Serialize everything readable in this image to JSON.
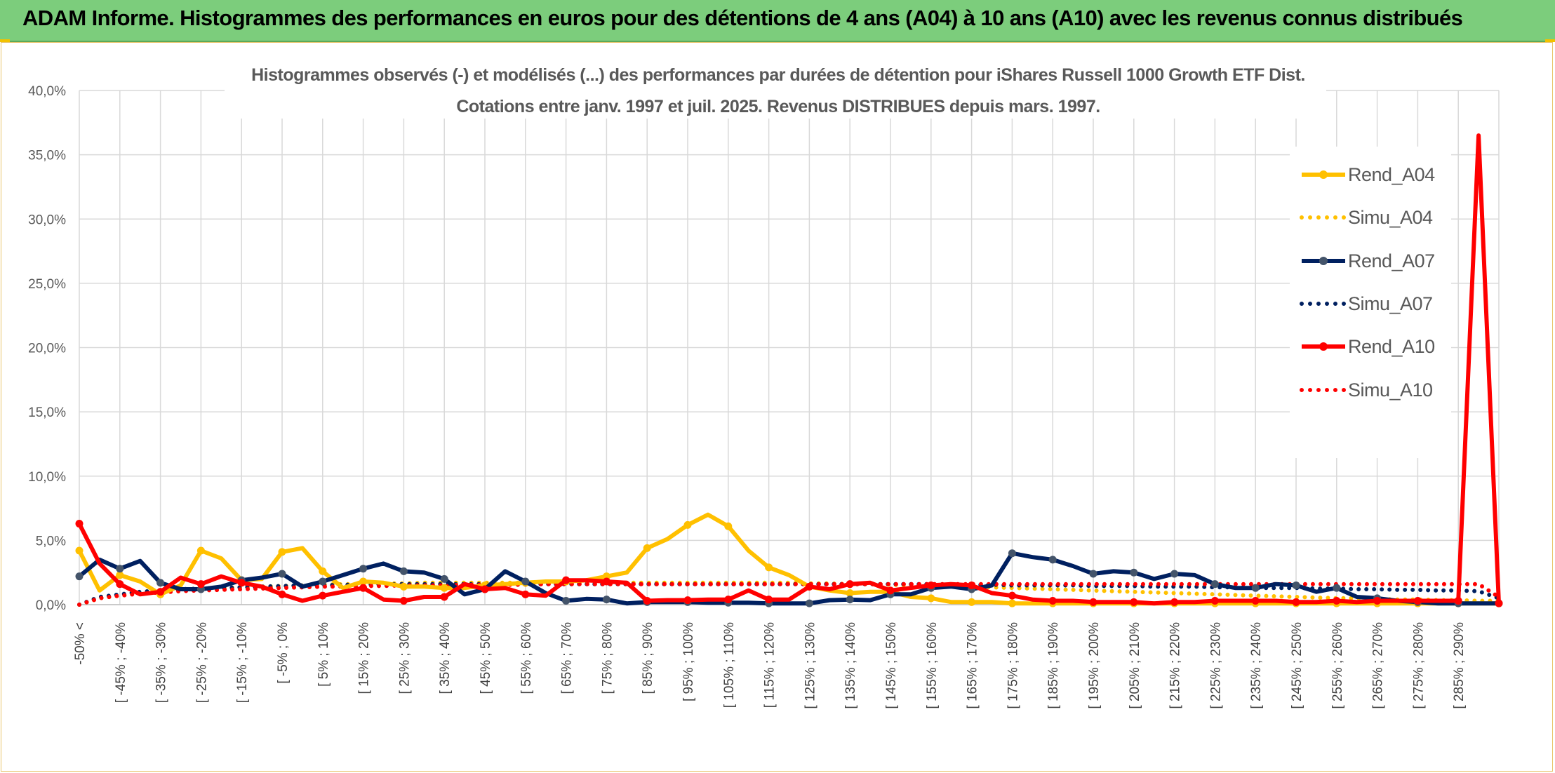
{
  "banner": {
    "title": "ADAM Informe. Histogrammes des performances en euros pour des détentions de 4 ans (A04) à 10 ans (A10) avec les revenus connus distribués"
  },
  "colors": {
    "banner_bg": "#7ccd7c",
    "rend_a04": "#ffc000",
    "rend_a07": "#002060",
    "rend_a10": "#ff0000",
    "marker_a07": "#44546a",
    "grid": "#d9d9d9"
  },
  "chart_data": {
    "type": "line",
    "title": "Histogrammes observés (-) et modélisés (...) des performances par durées de détention pour iShares Russell 1000 Growth ETF Dist.",
    "subtitle": "Cotations entre janv. 1997 et juil. 2025. Revenus DISTRIBUES depuis mars. 1997.",
    "xlabel": "",
    "ylabel": "",
    "ylim": [
      0,
      40
    ],
    "y_ticks": [
      "0,0%",
      "5,0%",
      "10,0%",
      "15,0%",
      "20,0%",
      "25,0%",
      "30,0%",
      "35,0%",
      "40,0%"
    ],
    "grid": true,
    "legend_position": "top-right",
    "x_tick_labels": [
      "-50% <",
      "[ -45% ; -40%",
      "[ -35% ; -30%",
      "[ -25% ; -20%",
      "[ -15% ; -10%",
      "[ -5% ; 0%",
      "[ 5% ; 10%",
      "[ 15% ; 20%",
      "[ 25% ; 30%",
      "[ 35% ; 40%",
      "[ 45% ; 50%",
      "[ 55% ; 60%",
      "[ 65% ; 70%",
      "[ 75% ; 80%",
      "[ 85% ; 90%",
      "[ 95% ; 100%",
      "[ 105% ; 110%",
      "[ 115% ; 120%",
      "[ 125% ; 130%",
      "[ 135% ; 140%",
      "[ 145% ; 150%",
      "[ 155% ; 160%",
      "[ 165% ; 170%",
      "[ 175% ; 180%",
      "[ 185% ; 190%",
      "[ 195% ; 200%",
      "[ 205% ; 210%",
      "[ 215% ; 220%",
      "[ 225% ; 230%",
      "[ 235% ; 240%",
      "[ 245% ; 250%",
      "[ 255% ; 260%",
      "[ 265% ; 270%",
      "[ 275% ; 280%",
      "[ 285% ; 290%"
    ],
    "series": [
      {
        "name": "Rend_A04",
        "style": "solid",
        "color": "#ffc000",
        "values": [
          4.2,
          1.1,
          2.3,
          1.8,
          0.8,
          1.5,
          4.2,
          3.6,
          1.9,
          2.0,
          4.1,
          4.4,
          2.6,
          1.3,
          1.8,
          1.7,
          1.4,
          1.4,
          1.3,
          1.3,
          1.5,
          1.6,
          1.7,
          1.8,
          1.8,
          1.9,
          2.2,
          2.5,
          4.4,
          5.1,
          6.2,
          7.0,
          6.1,
          4.2,
          2.9,
          2.3,
          1.4,
          1.1,
          0.9,
          1.0,
          1.0,
          0.6,
          0.5,
          0.2,
          0.2,
          0.2,
          0.1,
          0.1,
          0.1,
          0.1,
          0.1,
          0.1,
          0.1,
          0.1,
          0.1,
          0.1,
          0.1,
          0.1,
          0.1,
          0.1,
          0.1,
          0.1,
          0.1,
          0.1,
          0.1,
          0.1,
          0.1,
          0.1,
          0.1,
          0.1,
          0.1
        ]
      },
      {
        "name": "Simu_A04",
        "style": "dotted",
        "color": "#ffc000",
        "values": [
          0.0,
          0.5,
          0.7,
          0.9,
          1.0,
          1.1,
          1.2,
          1.3,
          1.35,
          1.4,
          1.45,
          1.5,
          1.55,
          1.6,
          1.6,
          1.65,
          1.65,
          1.7,
          1.7,
          1.7,
          1.7,
          1.7,
          1.7,
          1.7,
          1.7,
          1.7,
          1.7,
          1.7,
          1.7,
          1.7,
          1.7,
          1.7,
          1.7,
          1.7,
          1.7,
          1.7,
          1.65,
          1.65,
          1.6,
          1.6,
          1.55,
          1.5,
          1.5,
          1.45,
          1.4,
          1.35,
          1.3,
          1.25,
          1.2,
          1.15,
          1.1,
          1.05,
          1.0,
          0.95,
          0.9,
          0.85,
          0.8,
          0.75,
          0.7,
          0.65,
          0.6,
          0.55,
          0.5,
          0.5,
          0.45,
          0.4,
          0.4,
          0.35,
          0.35,
          0.3,
          0.3
        ]
      },
      {
        "name": "Rend_A07",
        "style": "solid",
        "color": "#002060",
        "values": [
          2.2,
          3.5,
          2.8,
          3.4,
          1.7,
          1.2,
          1.2,
          1.4,
          1.9,
          2.1,
          2.4,
          1.4,
          1.8,
          2.3,
          2.8,
          3.2,
          2.6,
          2.5,
          2.0,
          0.8,
          1.2,
          2.6,
          1.8,
          0.9,
          0.3,
          0.45,
          0.4,
          0.1,
          0.2,
          0.2,
          0.2,
          0.15,
          0.15,
          0.15,
          0.1,
          0.1,
          0.1,
          0.35,
          0.4,
          0.35,
          0.8,
          0.8,
          1.3,
          1.4,
          1.2,
          1.5,
          4.0,
          3.7,
          3.5,
          3.0,
          2.4,
          2.6,
          2.5,
          2.0,
          2.4,
          2.3,
          1.6,
          1.3,
          1.3,
          1.6,
          1.5,
          1.0,
          1.3,
          0.6,
          0.5,
          0.3,
          0.2,
          0.1,
          0.1,
          0.1,
          0.1
        ]
      },
      {
        "name": "Simu_A07",
        "style": "dotted",
        "color": "#002060",
        "values": [
          0.0,
          0.6,
          0.8,
          1.0,
          1.1,
          1.2,
          1.25,
          1.3,
          1.35,
          1.4,
          1.45,
          1.5,
          1.5,
          1.55,
          1.55,
          1.6,
          1.6,
          1.6,
          1.6,
          1.6,
          1.6,
          1.6,
          1.6,
          1.6,
          1.6,
          1.6,
          1.6,
          1.6,
          1.6,
          1.6,
          1.6,
          1.6,
          1.6,
          1.6,
          1.6,
          1.6,
          1.6,
          1.6,
          1.6,
          1.6,
          1.6,
          1.6,
          1.6,
          1.55,
          1.55,
          1.55,
          1.5,
          1.5,
          1.5,
          1.5,
          1.45,
          1.45,
          1.45,
          1.4,
          1.4,
          1.4,
          1.35,
          1.35,
          1.3,
          1.3,
          1.3,
          1.25,
          1.25,
          1.2,
          1.2,
          1.15,
          1.15,
          1.1,
          1.1,
          1.05,
          0.5
        ]
      },
      {
        "name": "Rend_A10",
        "style": "solid",
        "color": "#ff0000",
        "values": [
          6.3,
          3.2,
          1.6,
          0.8,
          1.0,
          2.1,
          1.6,
          2.2,
          1.7,
          1.4,
          0.8,
          0.3,
          0.7,
          1.0,
          1.3,
          0.4,
          0.3,
          0.6,
          0.6,
          1.6,
          1.2,
          1.3,
          0.8,
          0.7,
          1.9,
          1.9,
          1.8,
          1.7,
          0.3,
          0.35,
          0.35,
          0.4,
          0.4,
          1.1,
          0.4,
          0.4,
          1.4,
          1.2,
          1.6,
          1.7,
          1.1,
          1.3,
          1.5,
          1.6,
          1.5,
          0.9,
          0.7,
          0.4,
          0.3,
          0.3,
          0.2,
          0.2,
          0.2,
          0.1,
          0.2,
          0.2,
          0.3,
          0.3,
          0.3,
          0.3,
          0.2,
          0.2,
          0.3,
          0.2,
          0.3,
          0.3,
          0.3,
          0.3,
          0.3,
          36.5,
          0.1
        ]
      },
      {
        "name": "Simu_A10",
        "style": "dotted",
        "color": "#ff0000",
        "values": [
          0.0,
          0.5,
          0.7,
          0.85,
          0.95,
          1.05,
          1.1,
          1.15,
          1.2,
          1.25,
          1.3,
          1.35,
          1.4,
          1.4,
          1.45,
          1.45,
          1.5,
          1.5,
          1.5,
          1.55,
          1.55,
          1.55,
          1.55,
          1.6,
          1.6,
          1.6,
          1.6,
          1.6,
          1.6,
          1.6,
          1.6,
          1.6,
          1.6,
          1.6,
          1.6,
          1.6,
          1.6,
          1.6,
          1.6,
          1.6,
          1.6,
          1.6,
          1.6,
          1.6,
          1.6,
          1.6,
          1.6,
          1.6,
          1.6,
          1.6,
          1.6,
          1.6,
          1.6,
          1.6,
          1.6,
          1.6,
          1.6,
          1.6,
          1.6,
          1.6,
          1.6,
          1.6,
          1.6,
          1.6,
          1.6,
          1.6,
          1.6,
          1.6,
          1.6,
          1.6,
          0.6
        ]
      }
    ]
  }
}
